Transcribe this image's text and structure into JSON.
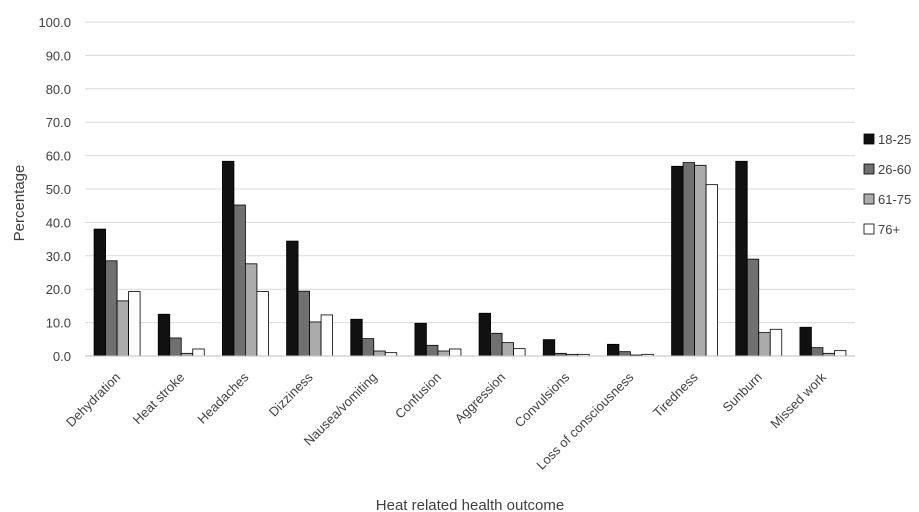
{
  "chart_data": {
    "type": "bar",
    "title": "",
    "xlabel": "Heat related health outcome",
    "ylabel": "Percentage",
    "ylim": [
      0,
      100
    ],
    "yticks": [
      "0.0",
      "10.0",
      "20.0",
      "30.0",
      "40.0",
      "50.0",
      "60.0",
      "70.0",
      "80.0",
      "90.0",
      "100.0"
    ],
    "grid": true,
    "legend_position": "right",
    "categories": [
      "Dehydration",
      "Heat stroke",
      "Headaches",
      "Dizziness",
      "Nausea/vomiting",
      "Confusion",
      "Aggression",
      "Convulsions",
      "Loss of consciousness",
      "Tiredness",
      "Sunburn",
      "Missed work"
    ],
    "series": [
      {
        "name": "18-25",
        "color": "#111111",
        "values": [
          38.0,
          12.5,
          58.3,
          34.4,
          11.0,
          9.8,
          12.8,
          4.9,
          3.5,
          56.8,
          58.3,
          8.6
        ]
      },
      {
        "name": "26-60",
        "color": "#707070",
        "values": [
          28.5,
          5.4,
          45.2,
          19.4,
          5.2,
          3.2,
          6.8,
          0.8,
          1.3,
          57.9,
          29.0,
          2.5
        ]
      },
      {
        "name": "61-75",
        "color": "#ababab",
        "values": [
          16.5,
          0.8,
          27.6,
          10.2,
          1.5,
          1.5,
          4.0,
          0.5,
          0.3,
          57.1,
          7.0,
          0.8
        ]
      },
      {
        "name": "76+",
        "color": "#ffffff",
        "values": [
          19.3,
          2.1,
          19.3,
          12.3,
          1.0,
          2.1,
          2.2,
          0.5,
          0.5,
          51.3,
          8.0,
          1.6
        ]
      }
    ]
  }
}
